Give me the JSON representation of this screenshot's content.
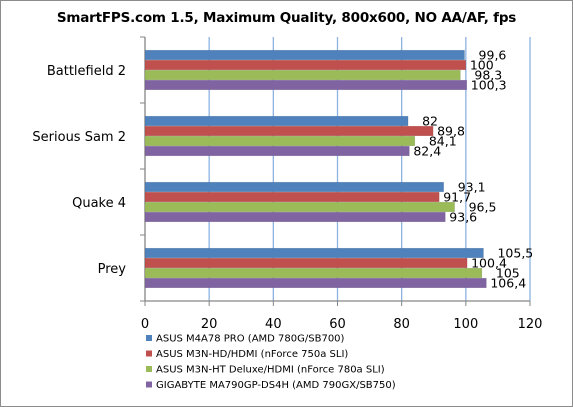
{
  "chart_data": {
    "type": "bar",
    "orientation": "horizontal",
    "title": "SmartFPS.com 1.5, Maximum Quality, 800x600, NO AA/AF, fps",
    "categories": [
      "Battlefield 2",
      "Serious Sam 2",
      "Quake 4",
      "Prey"
    ],
    "series": [
      {
        "name": "ASUS M4A78 PRO (AMD 780G/SB700)",
        "color": "#4f81bd",
        "values": [
          99.6,
          82,
          93.1,
          105.5
        ],
        "labels": [
          "99,6",
          "82",
          "93,1",
          "105,5"
        ]
      },
      {
        "name": "ASUS M3N-HD/HDMI (nForce 750a SLI)",
        "color": "#c0504d",
        "values": [
          100,
          89.8,
          91.7,
          100.4
        ],
        "labels": [
          "100",
          "89,8",
          "91,7",
          "100,4"
        ]
      },
      {
        "name": "ASUS M3N-HT Deluxe/HDMI (nForce 780a SLI)",
        "color": "#9bbb59",
        "values": [
          98.3,
          84.1,
          96.5,
          105
        ],
        "labels": [
          "98,3",
          "84,1",
          "96,5",
          "105"
        ]
      },
      {
        "name": "GIGABYTE MA790GP-DS4H (AMD 790GX/SB750)",
        "color": "#8064a2",
        "values": [
          100.3,
          82.4,
          93.6,
          106.4
        ],
        "labels": [
          "100,3",
          "82,4",
          "93,6",
          "106,4"
        ]
      }
    ],
    "xlim": [
      0,
      120
    ],
    "xticks": [
      "0",
      "20",
      "40",
      "60",
      "80",
      "100",
      "120"
    ],
    "grid": "vertical",
    "legend_position": "bottom-left"
  }
}
